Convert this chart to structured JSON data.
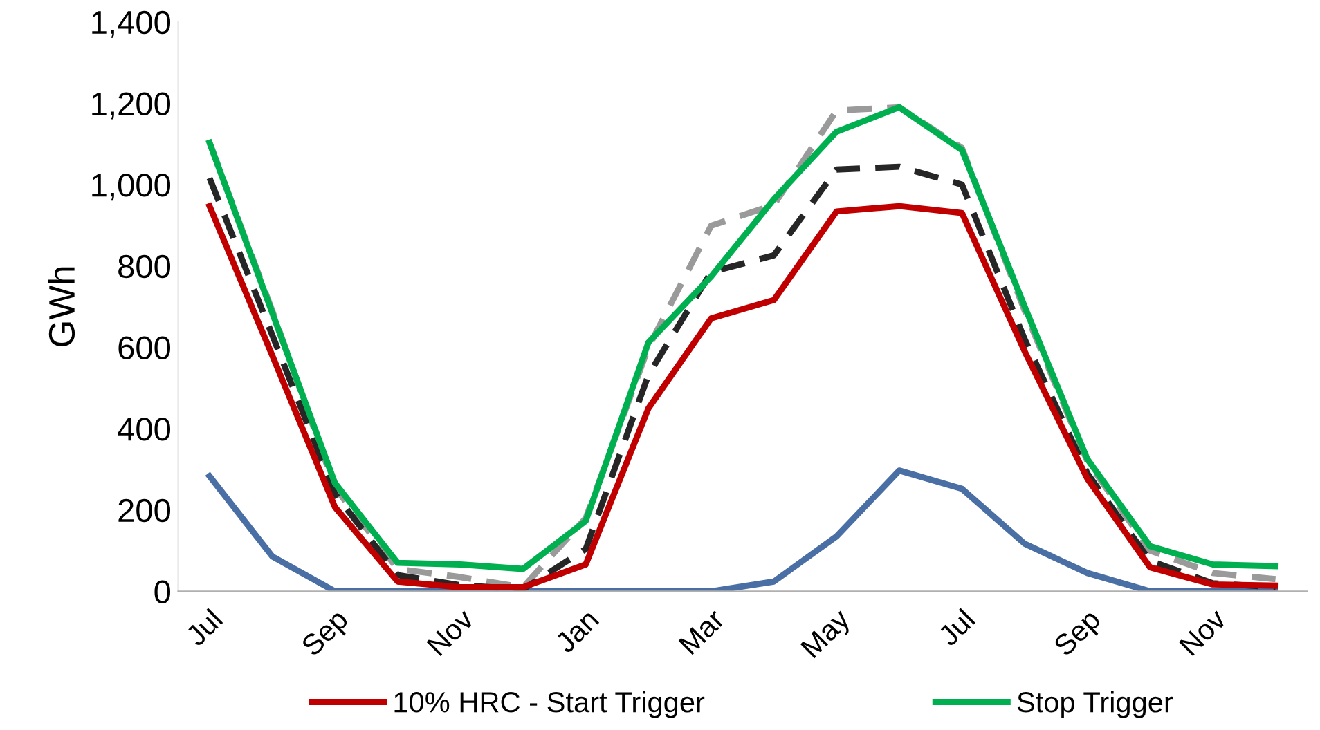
{
  "chart_data": {
    "type": "line",
    "ylabel": "GWh",
    "categories": [
      "Jul",
      null,
      "Sep",
      null,
      "Nov",
      null,
      "Jan",
      null,
      "Mar",
      null,
      "May",
      null,
      "Jul",
      null,
      "Sep",
      null,
      "Nov",
      null
    ],
    "ylim": [
      0,
      1400
    ],
    "yticks": [
      {
        "value": 0,
        "label": "0"
      },
      {
        "value": 200,
        "label": "200"
      },
      {
        "value": 400,
        "label": "400"
      },
      {
        "value": 600,
        "label": "600"
      },
      {
        "value": 800,
        "label": "800"
      },
      {
        "value": 1000,
        "label": "1,000"
      },
      {
        "value": 1200,
        "label": "1,200"
      },
      {
        "value": 1400,
        "label": "1,400"
      }
    ],
    "grid": false,
    "legend": "bottom",
    "marker": "none",
    "series": [
      {
        "color": "#4a6fa5",
        "line_style": "solid",
        "values": [
          283,
          86,
          0,
          0,
          0,
          0,
          0,
          0,
          0,
          24,
          135,
          297,
          252,
          117,
          45,
          0,
          0,
          0
        ]
      },
      {
        "color": "#9a9a9a",
        "line_style": "dashed",
        "values": [
          1103,
          690,
          255,
          55,
          35,
          10,
          180,
          600,
          899,
          950,
          1182,
          1190,
          1090,
          690,
          320,
          100,
          45,
          30
        ]
      },
      {
        "color": "#262626",
        "line_style": "dashed",
        "values": [
          1016,
          630,
          240,
          40,
          15,
          5,
          104,
          532,
          785,
          826,
          1037,
          1044,
          1000,
          620,
          290,
          75,
          20,
          10
        ]
      },
      {
        "name": "10% HRC - Start Trigger",
        "color": "#c00000",
        "line_style": "solid",
        "values": [
          947,
          580,
          207,
          24,
          10,
          10,
          66,
          450,
          671,
          716,
          934,
          947,
          930,
          590,
          277,
          59,
          17,
          14
        ]
      },
      {
        "name": "Stop Trigger",
        "color": "#00b050",
        "line_style": "solid",
        "values": [
          1103,
          685,
          266,
          70,
          66,
          55,
          173,
          612,
          774,
          964,
          1130,
          1190,
          1085,
          700,
          325,
          111,
          66,
          62
        ]
      }
    ]
  }
}
